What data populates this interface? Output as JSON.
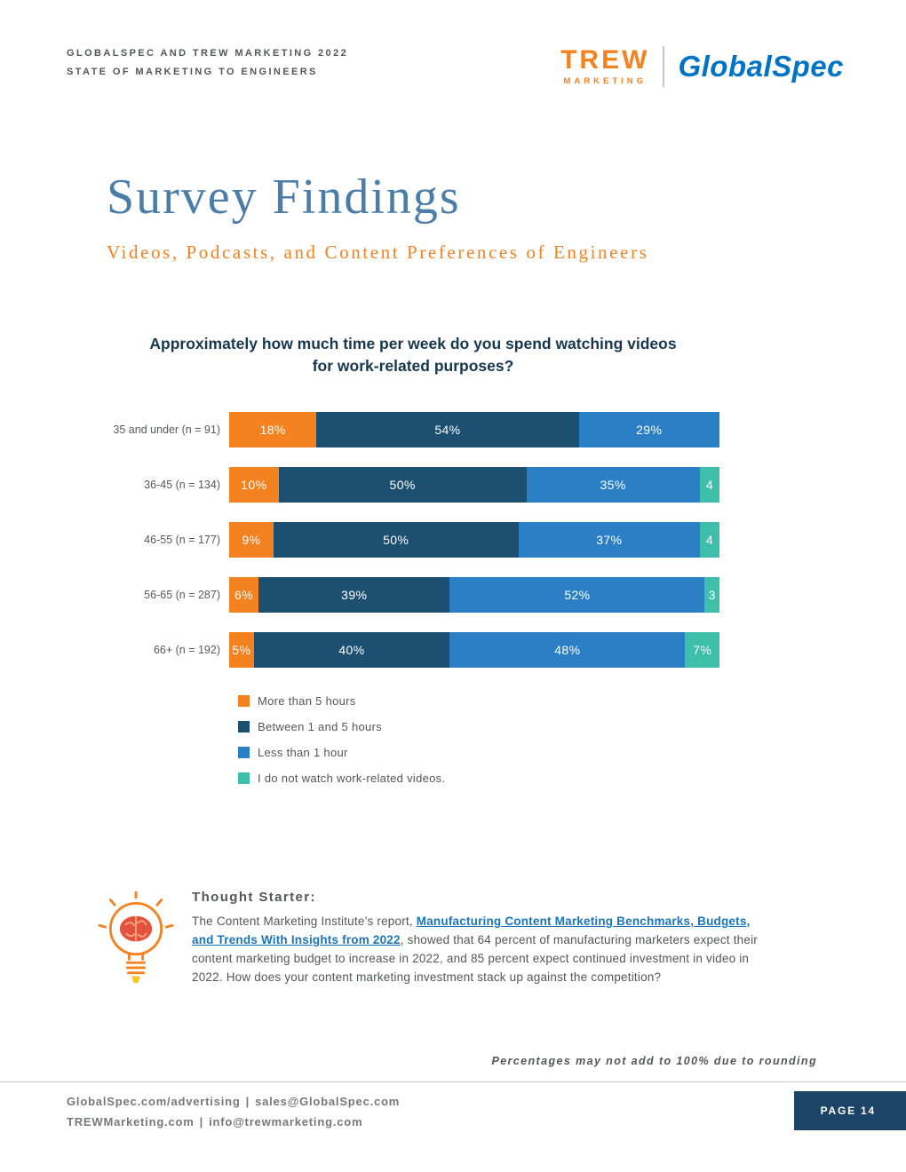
{
  "header": {
    "eyebrow_line1": "GLOBALSPEC AND TREW MARKETING 2022",
    "eyebrow_line2": "STATE OF MARKETING TO ENGINEERS",
    "trew_logo": {
      "name": "TREW",
      "sub": "MARKETING"
    },
    "globalspec_logo": "GlobalSpec"
  },
  "title": "Survey Findings",
  "subtitle": "Videos, Podcasts, and Content Preferences of Engineers",
  "chart_data": {
    "type": "bar",
    "stacked": true,
    "orientation": "horizontal",
    "title": "Approximately how much time per week do you spend watching videos for work-related purposes?",
    "categories": [
      "35 and under (n = 91)",
      "36-45 (n = 134)",
      "46-55 (n = 177)",
      "56-65 (n = 287)",
      "66+ (n = 192)"
    ],
    "series": [
      {
        "name": "More than 5 hours",
        "color": "#F58220",
        "values": [
          18,
          10,
          9,
          6,
          5
        ],
        "labels": [
          "18%",
          "10%",
          "9%",
          "6%",
          "5%"
        ]
      },
      {
        "name": "Between 1 and 5 hours",
        "color": "#1D4F71",
        "values": [
          54,
          50,
          50,
          39,
          40
        ],
        "labels": [
          "54%",
          "50%",
          "50%",
          "39%",
          "40%"
        ]
      },
      {
        "name": "Less than 1 hour",
        "color": "#2B7FC4",
        "values": [
          29,
          35,
          37,
          52,
          48
        ],
        "labels": [
          "29%",
          "35%",
          "37%",
          "52%",
          "48%"
        ]
      },
      {
        "name": "I do not watch work-related videos.",
        "color": "#3EBFA9",
        "values": [
          0,
          4,
          4,
          3,
          7
        ],
        "labels": [
          "",
          "4",
          "4",
          "3",
          "7%"
        ]
      }
    ],
    "xlim": [
      0,
      100
    ],
    "legend_position": "bottom-left",
    "value_labels": "inside-white"
  },
  "thought_starter": {
    "heading": "Thought Starter:",
    "text_before": "The Content Marketing Institute’s report, ",
    "link_text": "Manufacturing Content Marketing Benchmarks, Budgets, and Trends With Insights from 2022",
    "text_after": ", showed that 64 percent of manufacturing marketers expect their content marketing budget to increase in 2022, and 85 percent expect continued investment in video in 2022. How does your content marketing investment stack up against the competition?"
  },
  "footnote": "Percentages may not add to 100% due to rounding",
  "footer": {
    "line1_left": "GlobalSpec.com/advertising",
    "line1_right": "sales@GlobalSpec.com",
    "line2_left": "TREWMarketing.com",
    "line2_right": "info@trewmarketing.com",
    "separator": "|",
    "page_label": "PAGE 14"
  },
  "icons": {
    "thought_starter": "lightbulb-brain-icon"
  }
}
